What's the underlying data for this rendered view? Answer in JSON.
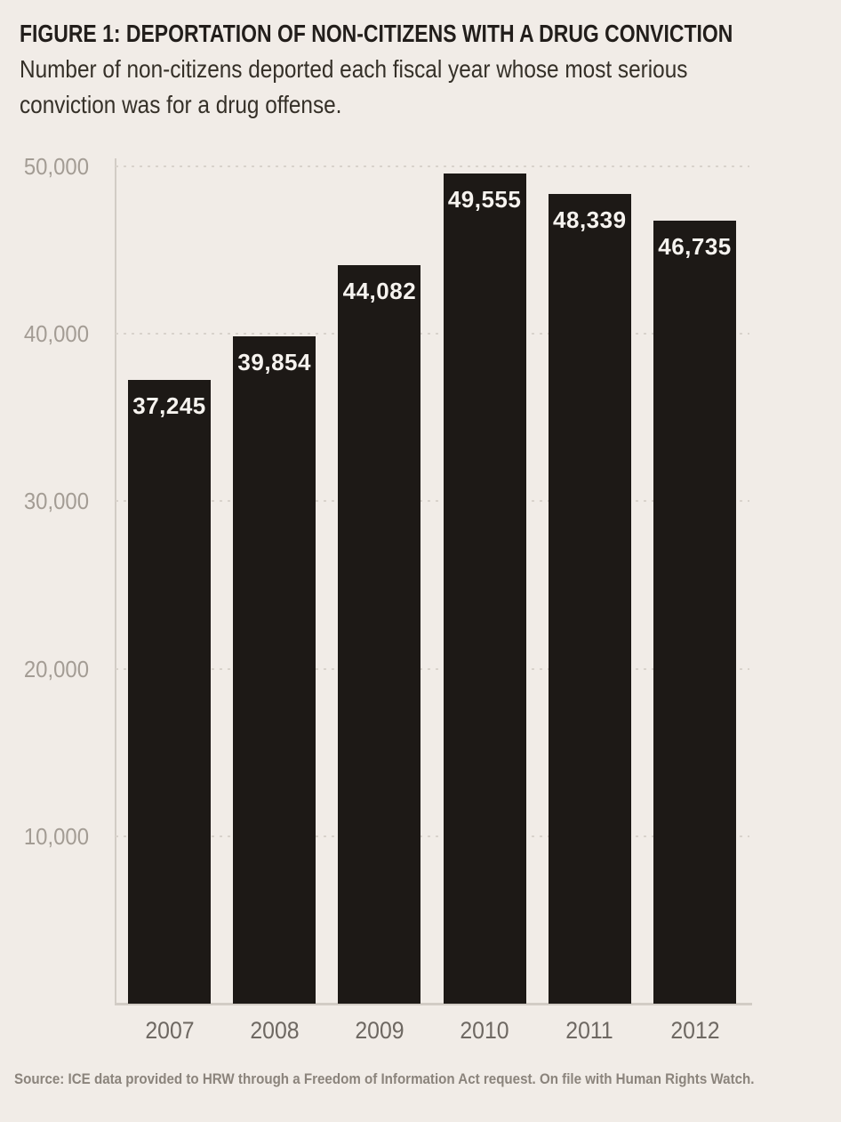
{
  "figure": {
    "title": "FIGURE 1: DEPORTATION OF NON-CITIZENS WITH A DRUG CONVICTION",
    "subtitle_lines": [
      "Number of non-citizens deported each fiscal year whose most serious",
      "conviction was for a drug offense."
    ],
    "source": "Source: ICE data provided to HRW through a Freedom of Information Act request. On file with Human Rights Watch."
  },
  "chart_data": {
    "type": "bar",
    "title": "FIGURE 1: DEPORTATION OF NON-CITIZENS WITH A DRUG CONVICTION",
    "subtitle": "Number of non-citizens deported each fiscal year whose most serious conviction was for a drug offense.",
    "categories": [
      "2007",
      "2008",
      "2009",
      "2010",
      "2011",
      "2012"
    ],
    "values": [
      37245,
      39854,
      44082,
      49555,
      48339,
      46735
    ],
    "value_labels": [
      "37,245",
      "39,854",
      "44,082",
      "49,555",
      "48,339",
      "46,735"
    ],
    "xlabel": "",
    "ylabel": "",
    "ylim": [
      0,
      50000
    ],
    "yticks": [
      50000,
      40000,
      30000,
      20000,
      10000
    ],
    "ytick_labels": [
      "50,000",
      "40,000",
      "30,000",
      "20,000",
      "10,000"
    ],
    "grid": "horizontal-dotted",
    "legend": "none",
    "source": "Source: ICE data provided to HRW through a Freedom of Information Act request. On file with Human Rights Watch."
  },
  "colors": {
    "background": "#f1ece7",
    "bar": "#1d1916",
    "title_text": "#221e1b",
    "subtitle_text": "#353028",
    "ytick_label": "#a39c94",
    "xtick_label": "#6e6862",
    "bar_value_label": "#f6f3ef",
    "gridline": "#d9d3cc",
    "axis_line": "#d2ccc5",
    "source_text": "#8b847c"
  }
}
